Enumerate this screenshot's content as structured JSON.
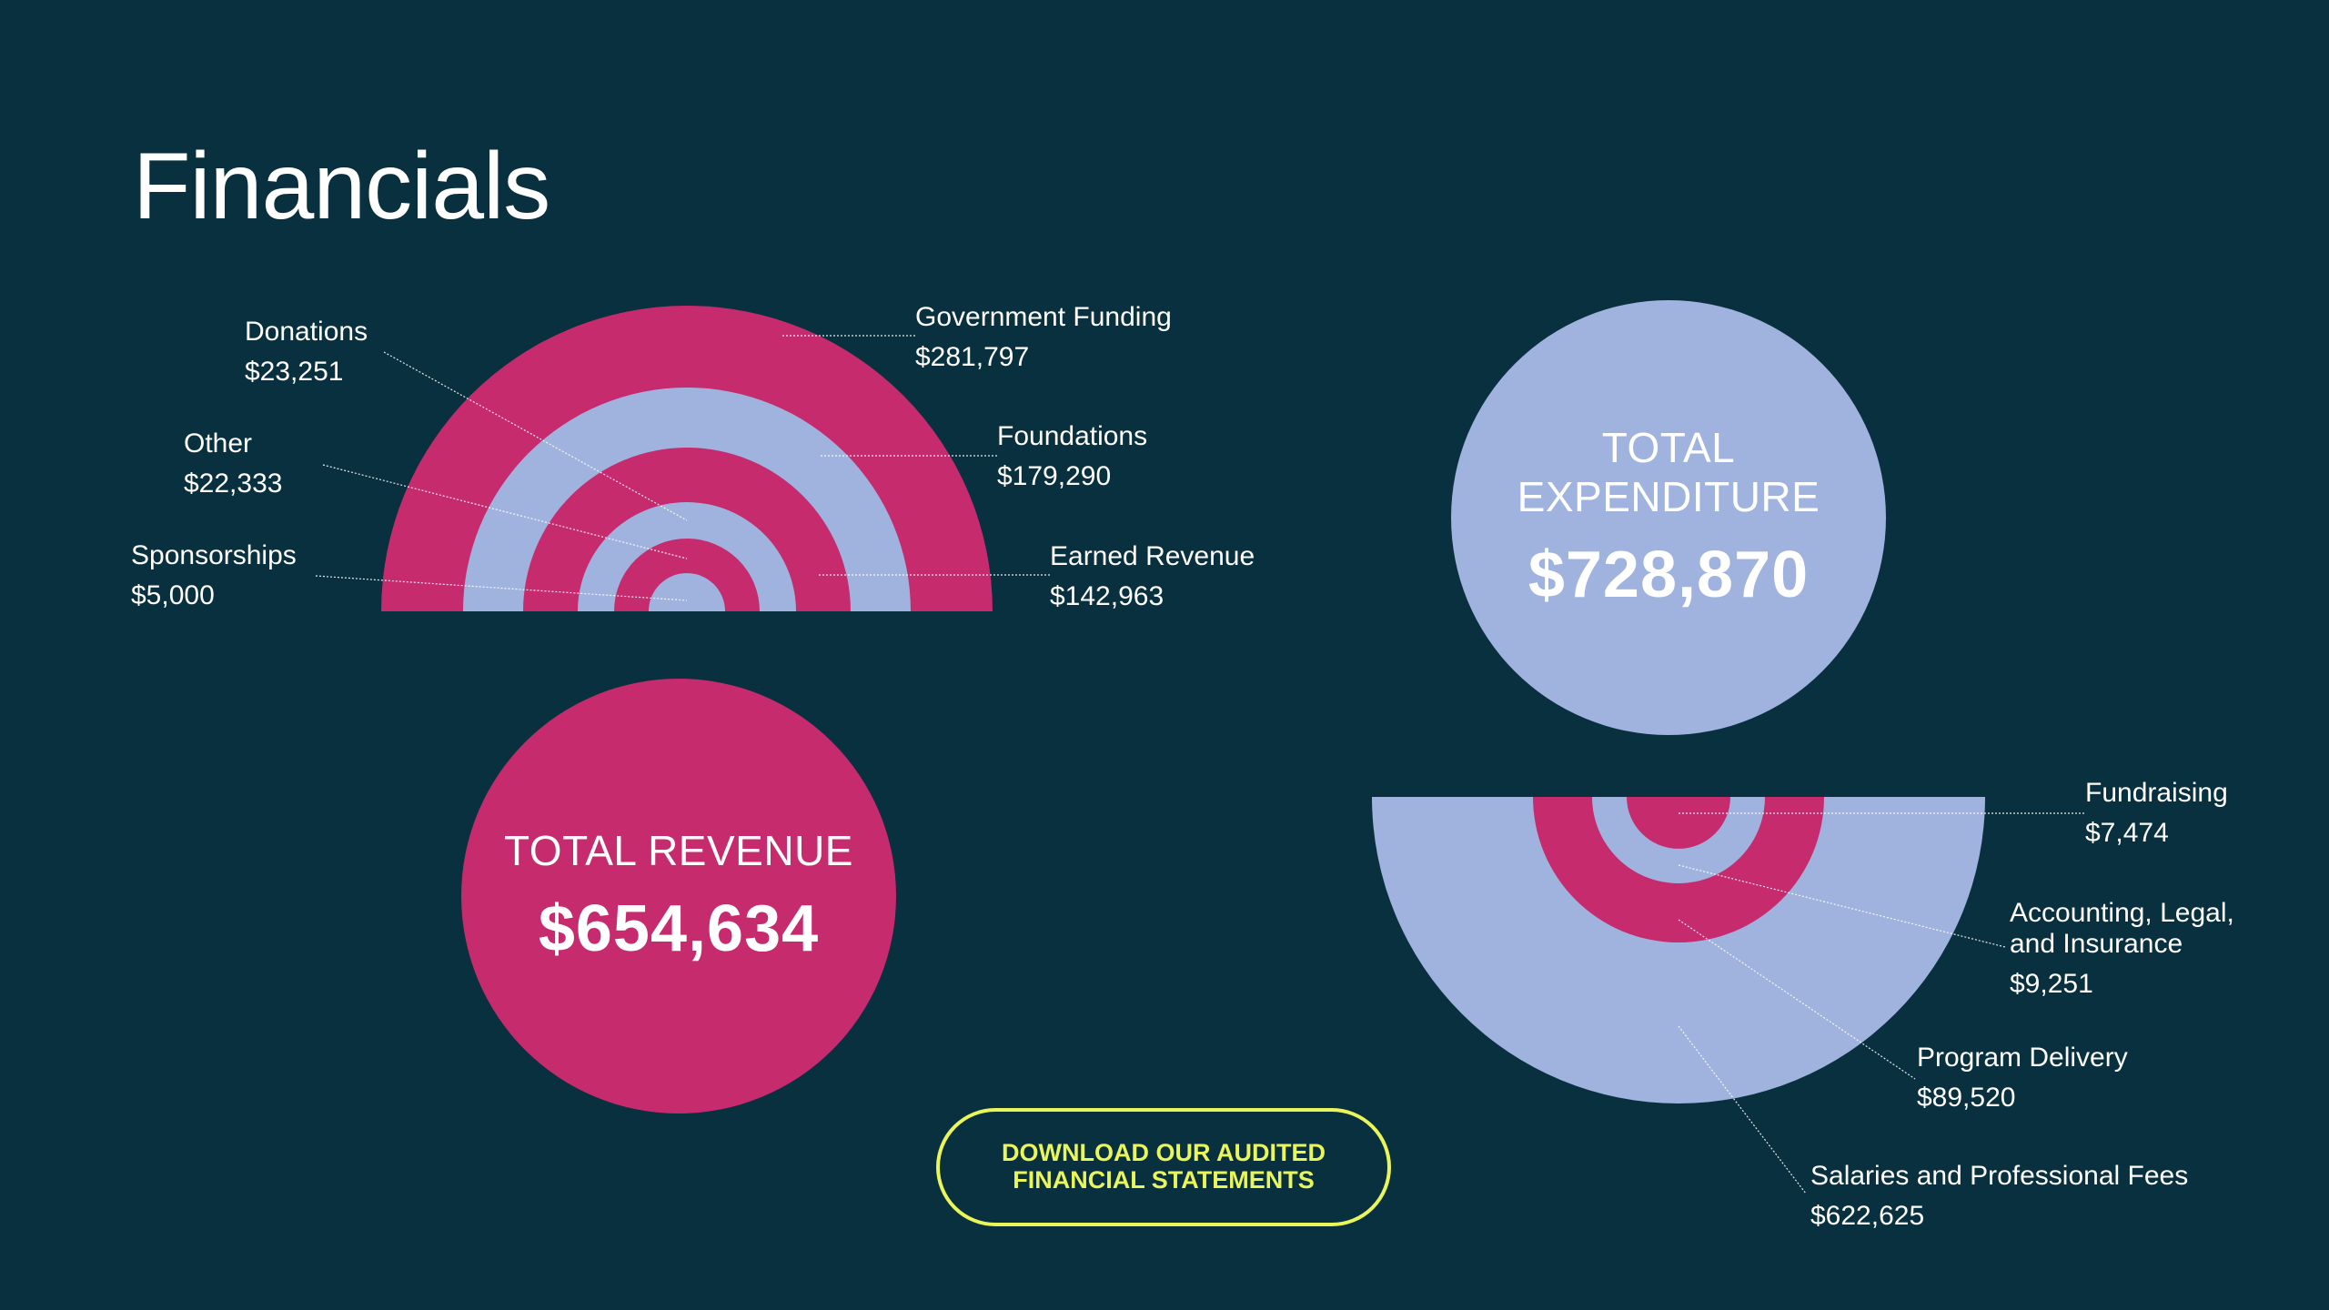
{
  "page": {
    "title": "Financials"
  },
  "colors": {
    "background": "#08303f",
    "magenta": "#c62b6e",
    "lavender": "#a0b3de",
    "button_accent": "#eaf55a",
    "text": "#ffffff"
  },
  "totals": {
    "revenue": {
      "label": "TOTAL REVENUE",
      "value": "$654,634"
    },
    "expenditure": {
      "label": "TOTAL EXPENDITURE",
      "value": "$728,870"
    }
  },
  "download_button": {
    "label": "DOWNLOAD OUR AUDITED FINANCIAL STATEMENTS"
  },
  "chart_data": [
    {
      "type": "pie",
      "variant": "concentric-semicircle",
      "orientation": "upper-half",
      "title": "Revenue",
      "total": 654634,
      "total_display": "$654,634",
      "series": [
        {
          "name": "Government Funding",
          "value": 281797,
          "display": "$281,797",
          "color": "#c62b6e",
          "label_side": "right"
        },
        {
          "name": "Foundations",
          "value": 179290,
          "display": "$179,290",
          "color": "#a0b3de",
          "label_side": "right"
        },
        {
          "name": "Earned Revenue",
          "value": 142963,
          "display": "$142,963",
          "color": "#c62b6e",
          "label_side": "right"
        },
        {
          "name": "Donations",
          "value": 23251,
          "display": "$23,251",
          "color": "#a0b3de",
          "label_side": "left"
        },
        {
          "name": "Other",
          "value": 22333,
          "display": "$22,333",
          "color": "#c62b6e",
          "label_side": "left"
        },
        {
          "name": "Sponsorships",
          "value": 5000,
          "display": "$5,000",
          "color": "#a0b3de",
          "label_side": "left"
        }
      ]
    },
    {
      "type": "pie",
      "variant": "concentric-semicircle",
      "orientation": "lower-half",
      "title": "Expenditure",
      "total": 728870,
      "total_display": "$728,870",
      "series": [
        {
          "name": "Salaries and Professional Fees",
          "value": 622625,
          "display": "$622,625",
          "color": "#a0b3de",
          "label_side": "right"
        },
        {
          "name": "Program Delivery",
          "value": 89520,
          "display": "$89,520",
          "color": "#c62b6e",
          "label_side": "right"
        },
        {
          "name": "Accounting, Legal, and Insurance",
          "value": 9251,
          "display": "$9,251",
          "color": "#a0b3de",
          "label_side": "right"
        },
        {
          "name": "Fundraising",
          "value": 7474,
          "display": "$7,474",
          "color": "#c62b6e",
          "label_side": "right"
        }
      ]
    }
  ]
}
